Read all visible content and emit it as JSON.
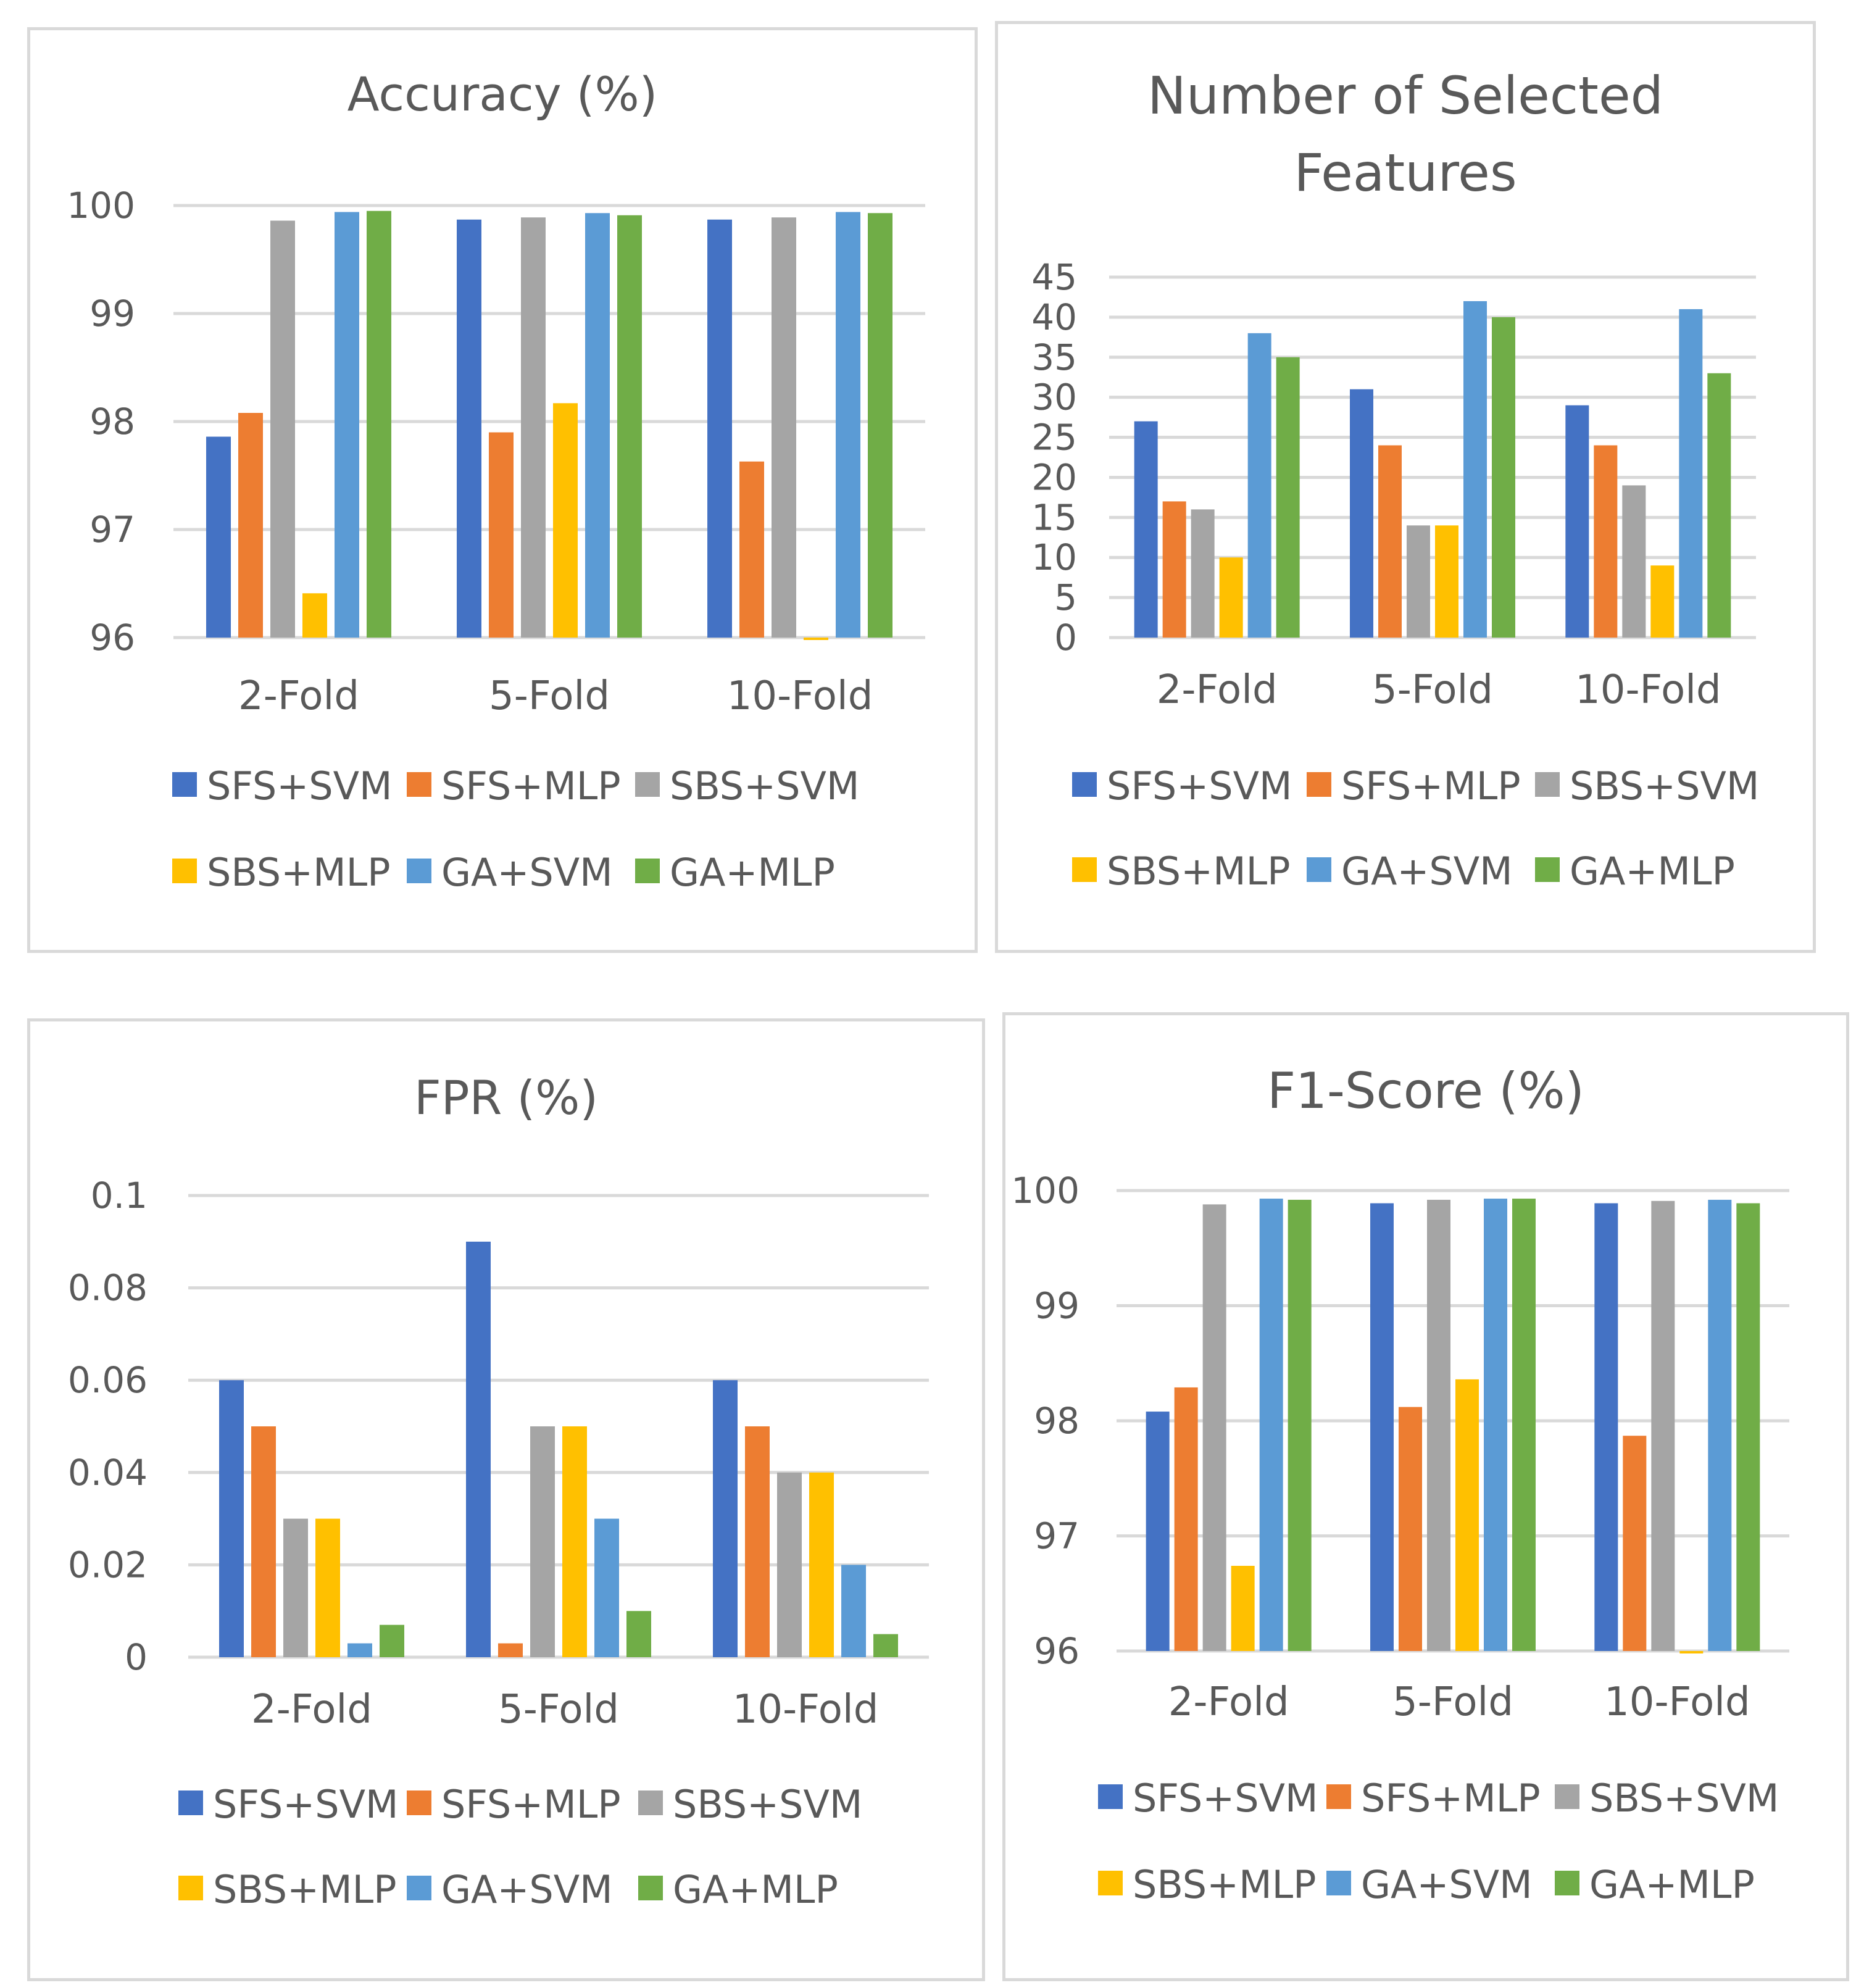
{
  "colors": {
    "SFS+SVM": "#4472c4",
    "SFS+MLP": "#ed7d31",
    "SBS+SVM": "#a5a5a5",
    "SBS+MLP": "#ffc000",
    "GA+SVM": "#5b9bd5",
    "GA+MLP": "#70ad47"
  },
  "chart_data": [
    {
      "type": "bar",
      "title": "Accuracy (%)",
      "title_lines": [
        "Accuracy (%)"
      ],
      "categories": [
        "2-Fold",
        "5-Fold",
        "10-Fold"
      ],
      "ylim": [
        96,
        100
      ],
      "yticks": [
        96,
        97,
        98,
        99,
        100
      ],
      "ytick_labels": [
        "96",
        "97",
        "98",
        "99",
        "100"
      ],
      "series": [
        {
          "name": "SFS+SVM",
          "values": [
            97.86,
            99.87,
            99.87
          ]
        },
        {
          "name": "SFS+MLP",
          "values": [
            98.08,
            97.9,
            97.63
          ]
        },
        {
          "name": "SBS+SVM",
          "values": [
            99.86,
            99.89,
            99.89
          ]
        },
        {
          "name": "SBS+MLP",
          "values": [
            96.41,
            98.17,
            95.98
          ]
        },
        {
          "name": "GA+SVM",
          "values": [
            99.94,
            99.93,
            99.94
          ]
        },
        {
          "name": "GA+MLP",
          "values": [
            99.95,
            99.91,
            99.93
          ]
        }
      ],
      "legend": [
        "SFS+SVM",
        "SFS+MLP",
        "SBS+SVM",
        "SBS+MLP",
        "GA+SVM",
        "GA+MLP"
      ]
    },
    {
      "type": "bar",
      "title": "Number of Selected Features",
      "title_lines": [
        "Number of Selected",
        "Features"
      ],
      "categories": [
        "2-Fold",
        "5-Fold",
        "10-Fold"
      ],
      "ylim": [
        0,
        45
      ],
      "yticks": [
        0,
        5,
        10,
        15,
        20,
        25,
        30,
        35,
        40,
        45
      ],
      "ytick_labels": [
        "0",
        "5",
        "10",
        "15",
        "20",
        "25",
        "30",
        "35",
        "40",
        "45"
      ],
      "series": [
        {
          "name": "SFS+SVM",
          "values": [
            27,
            31,
            29
          ]
        },
        {
          "name": "SFS+MLP",
          "values": [
            17,
            24,
            24
          ]
        },
        {
          "name": "SBS+SVM",
          "values": [
            16,
            14,
            19
          ]
        },
        {
          "name": "SBS+MLP",
          "values": [
            10,
            14,
            9
          ]
        },
        {
          "name": "GA+SVM",
          "values": [
            38,
            42,
            41
          ]
        },
        {
          "name": "GA+MLP",
          "values": [
            35,
            40,
            33
          ]
        }
      ],
      "legend": [
        "SFS+SVM",
        "SFS+MLP",
        "SBS+SVM",
        "SBS+MLP",
        "GA+SVM",
        "GA+MLP"
      ]
    },
    {
      "type": "bar",
      "title": "FPR (%)",
      "title_lines": [
        "FPR (%)"
      ],
      "categories": [
        "2-Fold",
        "5-Fold",
        "10-Fold"
      ],
      "ylim": [
        0,
        0.1
      ],
      "yticks": [
        0,
        0.02,
        0.04,
        0.06,
        0.08,
        0.1
      ],
      "ytick_labels": [
        "0",
        "0.02",
        "0.04",
        "0.06",
        "0.08",
        "0.1"
      ],
      "series": [
        {
          "name": "SFS+SVM",
          "values": [
            0.06,
            0.09,
            0.06
          ]
        },
        {
          "name": "SFS+MLP",
          "values": [
            0.05,
            0.003,
            0.05
          ]
        },
        {
          "name": "SBS+SVM",
          "values": [
            0.03,
            0.05,
            0.04
          ]
        },
        {
          "name": "SBS+MLP",
          "values": [
            0.03,
            0.05,
            0.04
          ]
        },
        {
          "name": "GA+SVM",
          "values": [
            0.003,
            0.03,
            0.02
          ]
        },
        {
          "name": "GA+MLP",
          "values": [
            0.007,
            0.01,
            0.005
          ]
        }
      ],
      "legend": [
        "SFS+SVM",
        "SFS+MLP",
        "SBS+SVM",
        "SBS+MLP",
        "GA+SVM",
        "GA+MLP"
      ]
    },
    {
      "type": "bar",
      "title": "F1-Score (%)",
      "title_lines": [
        "F1-Score (%)"
      ],
      "categories": [
        "2-Fold",
        "5-Fold",
        "10-Fold"
      ],
      "ylim": [
        96,
        100
      ],
      "yticks": [
        96,
        97,
        98,
        99,
        100
      ],
      "ytick_labels": [
        "96",
        "97",
        "98",
        "99",
        "100"
      ],
      "series": [
        {
          "name": "SFS+SVM",
          "values": [
            98.08,
            99.89,
            99.89
          ]
        },
        {
          "name": "SFS+MLP",
          "values": [
            98.29,
            98.12,
            97.87
          ]
        },
        {
          "name": "SBS+SVM",
          "values": [
            99.88,
            99.92,
            99.91
          ]
        },
        {
          "name": "SBS+MLP",
          "values": [
            96.74,
            98.36,
            95.98
          ]
        },
        {
          "name": "GA+SVM",
          "values": [
            99.93,
            99.93,
            99.92
          ]
        },
        {
          "name": "GA+MLP",
          "values": [
            99.92,
            99.93,
            99.89
          ]
        }
      ],
      "legend": [
        "SFS+SVM",
        "SFS+MLP",
        "SBS+SVM",
        "SBS+MLP",
        "GA+SVM",
        "GA+MLP"
      ]
    }
  ]
}
